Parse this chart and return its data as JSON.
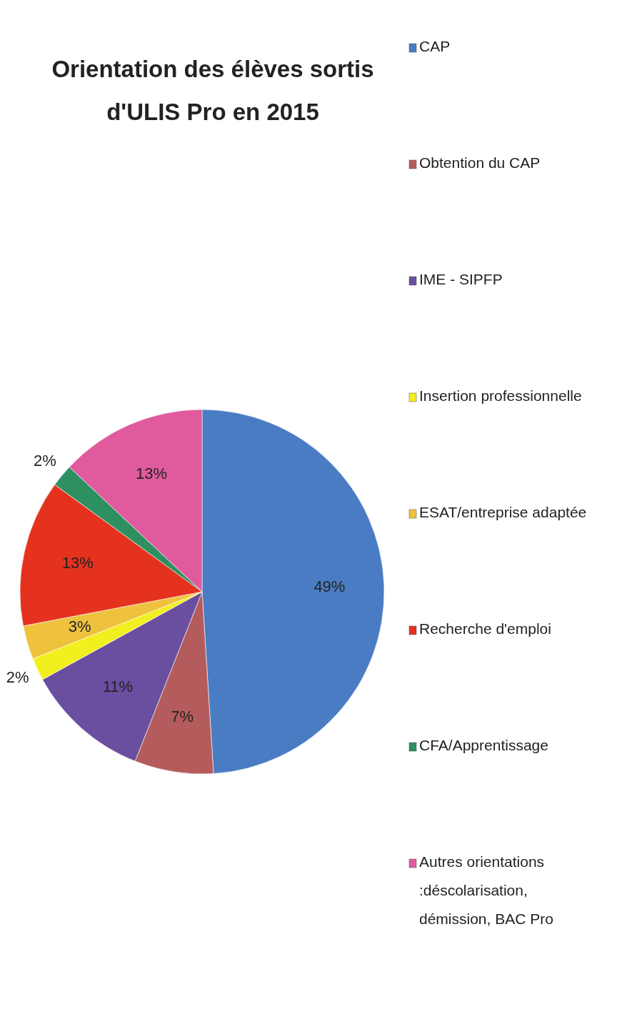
{
  "chart_data": {
    "type": "pie",
    "title": "Orientation des élèves sortis d'ULIS Pro en 2015",
    "categories": [
      "CAP",
      "Obtention du CAP",
      "IME - SIPFP",
      "Insertion professionnelle",
      "ESAT/entreprise adaptée",
      "Recherche d'emploi",
      "CFA/Apprentissage",
      "Autres orientations :déscolarisation, démission, BAC Pro"
    ],
    "values": [
      49,
      7,
      11,
      2,
      3,
      13,
      2,
      13
    ],
    "colors": [
      "#4a7cc4",
      "#b45c5c",
      "#6a4ea0",
      "#f2ef1e",
      "#efc23e",
      "#e4321f",
      "#2e9060",
      "#e05a9e"
    ],
    "value_labels": [
      "49%",
      "7%",
      "11%",
      "2%",
      "3%",
      "13%",
      "2%",
      "13%"
    ],
    "legend": "right"
  }
}
